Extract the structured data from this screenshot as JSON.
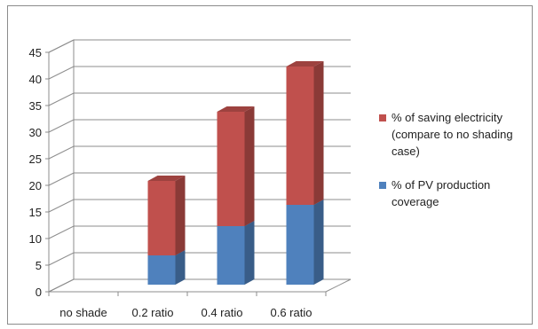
{
  "chart_data": {
    "type": "bar",
    "stacked": true,
    "three_d": true,
    "categories": [
      "no shade",
      "0.2 ratio",
      "0.4 ratio",
      "0.6 ratio"
    ],
    "series": [
      {
        "name": "% of PV production coverage",
        "values": [
          0,
          5.5,
          11,
          15
        ],
        "color": "#4f81bd"
      },
      {
        "name": "% of saving electricity (compare to no shading case)",
        "values": [
          0,
          14,
          21.5,
          26
        ],
        "color": "#c0504d"
      }
    ],
    "ylim": [
      0,
      45
    ],
    "yticks": [
      "0",
      "5",
      "10",
      "15",
      "20",
      "25",
      "30",
      "35",
      "40",
      "45"
    ],
    "grid": true,
    "legend_position": "right",
    "legend": [
      {
        "lines": [
          "% of saving electricity",
          "(compare to no shading",
          "case)"
        ],
        "color": "#c0504d"
      },
      {
        "lines": [
          "% of PV production",
          "coverage"
        ],
        "color": "#4f81bd"
      }
    ],
    "title": "",
    "xlabel": "",
    "ylabel": ""
  }
}
